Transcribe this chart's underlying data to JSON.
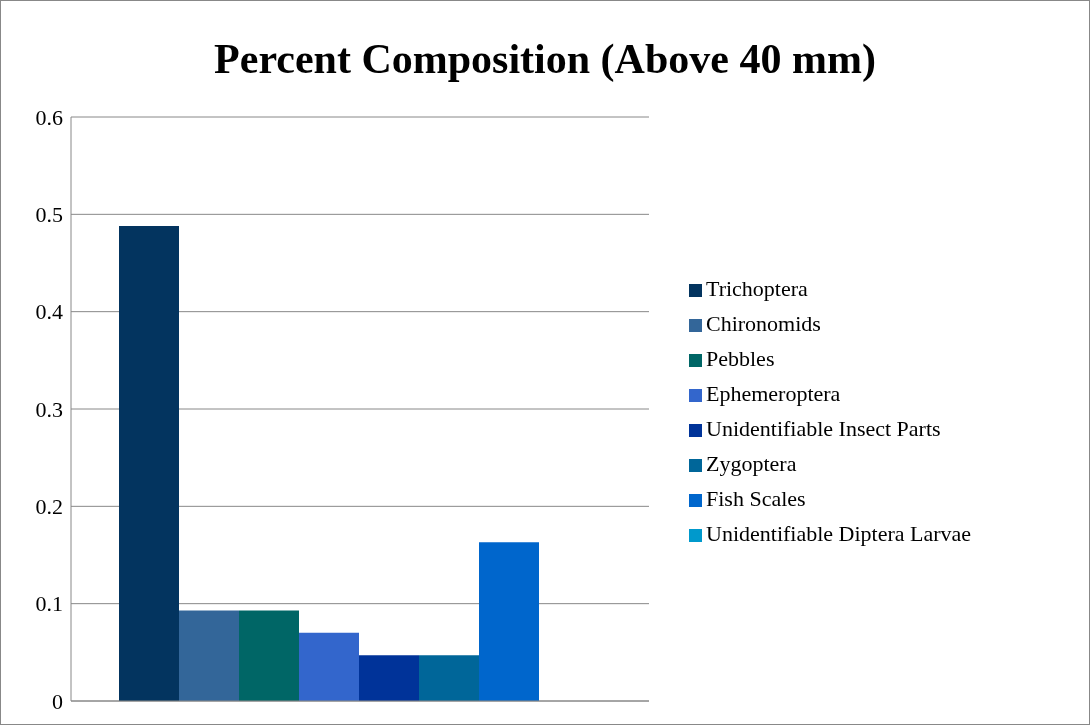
{
  "chart_data": {
    "type": "bar",
    "title": "Percent Composition (Above 40 mm)",
    "categories": [
      null
    ],
    "series": [
      {
        "name": "Trichoptera",
        "color": "#03345f",
        "values": [
          0.488
        ]
      },
      {
        "name": "Chironomids",
        "color": "#336699",
        "values": [
          0.093
        ]
      },
      {
        "name": "Pebbles",
        "color": "#006666",
        "values": [
          0.093
        ]
      },
      {
        "name": "Ephemeroptera",
        "color": "#3366cc",
        "values": [
          0.07
        ]
      },
      {
        "name": "Unidentifiable Insect Parts",
        "color": "#003399",
        "values": [
          0.047
        ]
      },
      {
        "name": "Zygoptera",
        "color": "#006699",
        "values": [
          0.047
        ]
      },
      {
        "name": "Fish Scales",
        "color": "#0066cc",
        "values": [
          0.163
        ]
      },
      {
        "name": "Unidentifiable Diptera Larvae",
        "color": "#0099cc",
        "values": [
          0
        ]
      }
    ],
    "ylim": [
      0,
      0.6
    ],
    "yticks": [
      0,
      0.1,
      0.2,
      0.3,
      0.4,
      0.5,
      0.6
    ],
    "grid": "y",
    "legend": "right"
  }
}
